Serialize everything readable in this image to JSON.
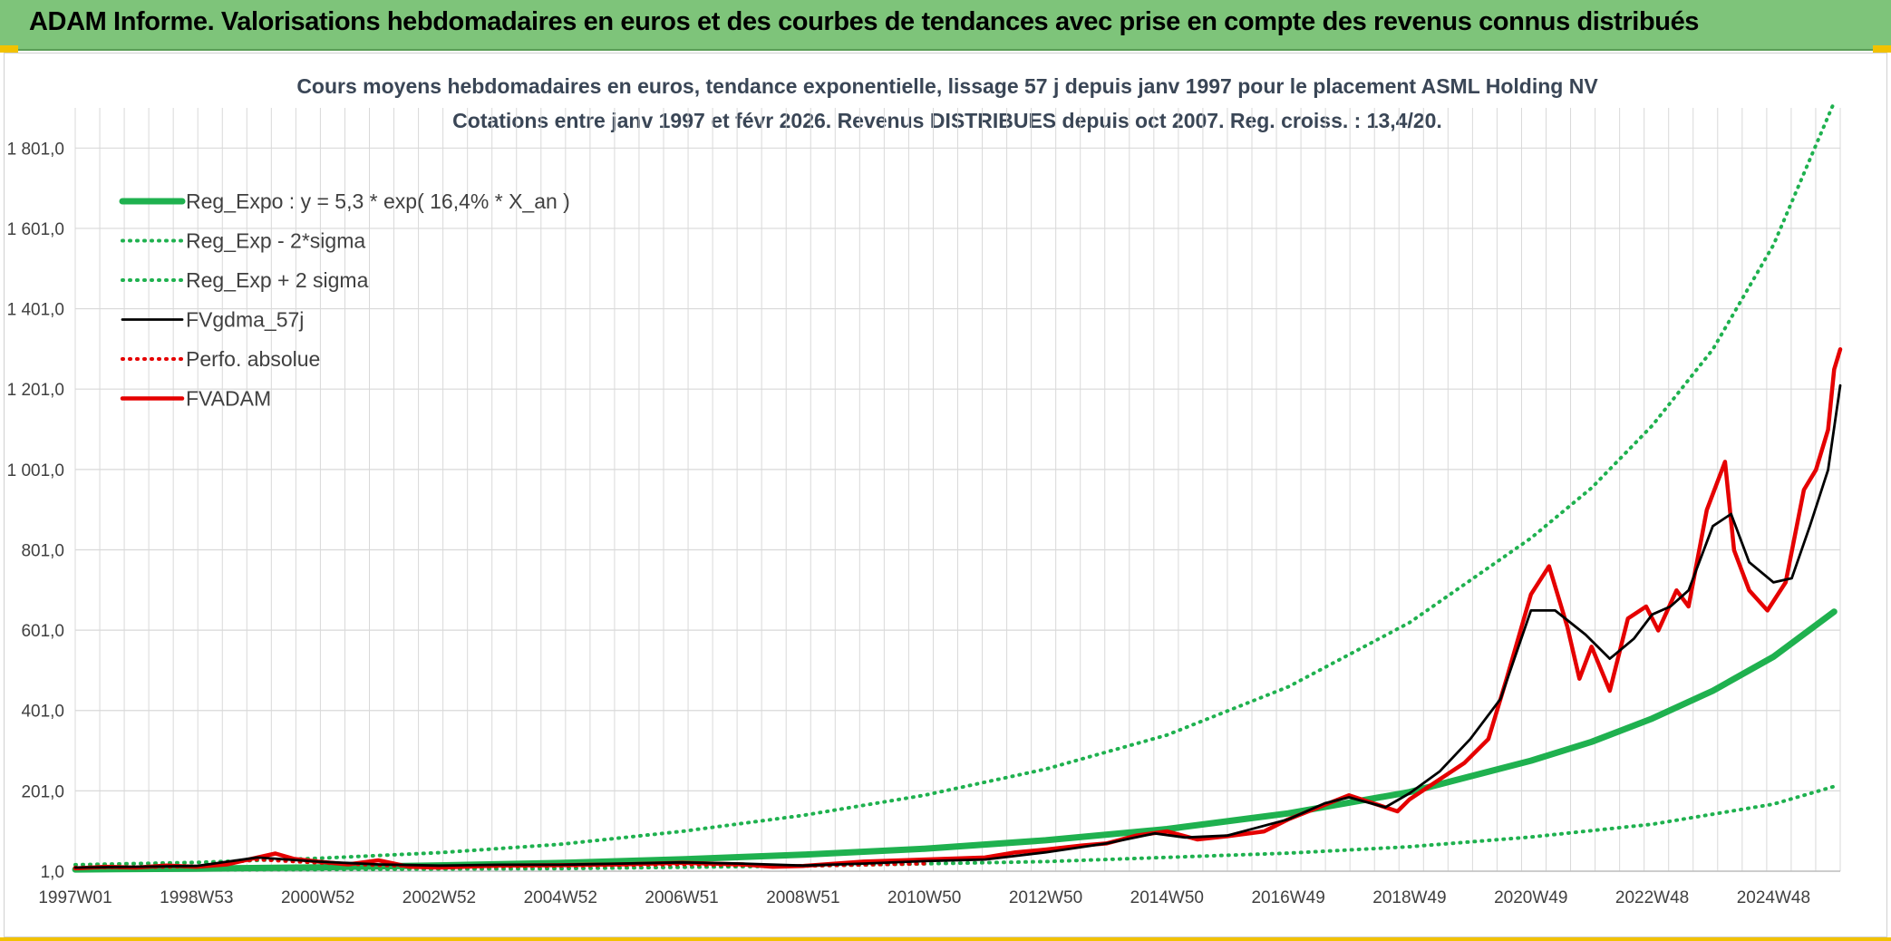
{
  "banner": {
    "title": "ADAM Informe. Valorisations hebdomadaires en euros et des courbes de tendances avec prise en compte des revenus connus distribués"
  },
  "colors": {
    "banner_bg": "#7ec47a",
    "accent_yellow": "#f2c200",
    "reg_green": "#1fb14f",
    "gdma_black": "#000000",
    "adam_red": "#e50000",
    "grid": "#d9d9d9"
  },
  "chart_data": {
    "type": "line",
    "title": "Cours moyens hebdomadaires en euros, tendance exponentielle, lissage 57 j depuis janv 1997 pour le placement ASML Holding NV",
    "subtitle": "Cotations entre janv 1997 et févr 2026. Revenus DISTRIBUES depuis oct 2007. Reg. croiss. : 13,4/20.",
    "xlabel": "",
    "ylabel": "",
    "xlim": [
      1997.0,
      2026.1
    ],
    "ylim": [
      1.0,
      1901.0
    ],
    "x_ticks": [
      {
        "label": "1997W01",
        "x": 1997.0
      },
      {
        "label": "1998W53",
        "x": 1999.0
      },
      {
        "label": "2000W52",
        "x": 2001.0
      },
      {
        "label": "2002W52",
        "x": 2003.0
      },
      {
        "label": "2004W52",
        "x": 2005.0
      },
      {
        "label": "2006W51",
        "x": 2007.0
      },
      {
        "label": "2008W51",
        "x": 2009.0
      },
      {
        "label": "2010W50",
        "x": 2011.0
      },
      {
        "label": "2012W50",
        "x": 2013.0
      },
      {
        "label": "2014W50",
        "x": 2015.0
      },
      {
        "label": "2016W49",
        "x": 2017.0
      },
      {
        "label": "2018W49",
        "x": 2019.0
      },
      {
        "label": "2020W49",
        "x": 2021.0
      },
      {
        "label": "2022W48",
        "x": 2023.0
      },
      {
        "label": "2024W48",
        "x": 2025.0
      }
    ],
    "y_ticks": [
      {
        "label": "1,0",
        "value": 1.0
      },
      {
        "label": "201,0",
        "value": 201.0
      },
      {
        "label": "401,0",
        "value": 401.0
      },
      {
        "label": "601,0",
        "value": 601.0
      },
      {
        "label": "801,0",
        "value": 801.0
      },
      {
        "label": "1 001,0",
        "value": 1001.0
      },
      {
        "label": "1 201,0",
        "value": 1201.0
      },
      {
        "label": "1 401,0",
        "value": 1401.0
      },
      {
        "label": "1 601,0",
        "value": 1601.0
      },
      {
        "label": "1 801,0",
        "value": 1801.0
      }
    ],
    "grid": true,
    "legend_position": "top-left",
    "series": [
      {
        "name": "Reg_Expo : y = 5,3 * exp( 16,4% *  X_an )",
        "style": "solid-thick",
        "color": "#1fb14f",
        "x": [
          1997.0,
          1999.0,
          2001.0,
          2003.0,
          2005.0,
          2007.0,
          2009.0,
          2011.0,
          2013.0,
          2015.0,
          2017.0,
          2019.0,
          2021.0,
          2022.0,
          2023.0,
          2024.0,
          2025.0,
          2026.0
        ],
        "y": [
          5.3,
          7.3,
          10.6,
          15.5,
          21.6,
          30.5,
          42.0,
          57.0,
          78.0,
          106.0,
          145.0,
          198.0,
          276.0,
          323.0,
          381.0,
          450.0,
          535.0,
          647.0
        ]
      },
      {
        "name": "Reg_Exp - 2*sigma",
        "style": "dotted",
        "color": "#1fb14f",
        "x": [
          1997.0,
          2001.0,
          2005.0,
          2009.0,
          2013.0,
          2017.0,
          2019.0,
          2021.0,
          2023.0,
          2025.0,
          2026.0
        ],
        "y": [
          4.0,
          5.0,
          7.5,
          14.0,
          25.0,
          46.0,
          62.0,
          86.0,
          118.0,
          168.0,
          212.0
        ]
      },
      {
        "name": "Reg_Exp + 2 sigma",
        "style": "dotted",
        "color": "#1fb14f",
        "x": [
          1997.0,
          1999.0,
          2001.0,
          2003.0,
          2005.0,
          2007.0,
          2009.0,
          2011.0,
          2013.0,
          2015.0,
          2017.0,
          2019.0,
          2021.0,
          2022.0,
          2023.0,
          2024.0,
          2025.0,
          2026.0
        ],
        "y": [
          17.0,
          23.0,
          33.0,
          47.0,
          68.0,
          100.0,
          140.0,
          190.0,
          255.0,
          340.0,
          460.0,
          620.0,
          830.0,
          955.0,
          1110.0,
          1300.0,
          1560.0,
          1915.0
        ]
      },
      {
        "name": "FVgdma_57j",
        "style": "solid",
        "color": "#000000",
        "x": [
          1997.0,
          1998.0,
          1999.0,
          2000.0,
          2000.5,
          2001.0,
          2002.0,
          2003.0,
          2004.0,
          2005.0,
          2006.0,
          2007.0,
          2008.0,
          2009.0,
          2010.0,
          2011.0,
          2012.0,
          2013.0,
          2014.0,
          2014.8,
          2015.3,
          2016.0,
          2016.5,
          2017.0,
          2017.6,
          2018.0,
          2018.6,
          2019.0,
          2019.5,
          2020.0,
          2020.5,
          2021.0,
          2021.4,
          2021.9,
          2022.3,
          2022.7,
          2023.0,
          2023.3,
          2023.6,
          2024.0,
          2024.3,
          2024.6,
          2025.0,
          2025.3,
          2025.6,
          2025.9,
          2026.1
        ],
        "y": [
          10.0,
          12.0,
          14.0,
          35.0,
          30.0,
          25.0,
          18.0,
          15.0,
          17.0,
          17.0,
          20.0,
          23.0,
          20.0,
          15.0,
          20.0,
          26.0,
          30.0,
          48.0,
          70.0,
          95.0,
          85.0,
          90.0,
          110.0,
          130.0,
          170.0,
          185.0,
          160.0,
          195.0,
          250.0,
          330.0,
          430.0,
          650.0,
          650.0,
          590.0,
          530.0,
          580.0,
          640.0,
          660.0,
          700.0,
          860.0,
          890.0,
          770.0,
          720.0,
          730.0,
          860.0,
          1000.0,
          1210.0
        ]
      },
      {
        "name": "Perfo. absolue",
        "style": "dotted",
        "color": "#e50000",
        "x": [
          1997.0,
          1998.0,
          1999.0,
          2000.0,
          2001.0,
          2002.0,
          2003.0,
          2005.0,
          2007.0,
          2009.0,
          2011.0
        ],
        "y": [
          10.0,
          11.0,
          13.0,
          30.0,
          22.0,
          16.0,
          12.0,
          14.0,
          18.0,
          14.0,
          20.0
        ]
      },
      {
        "name": "FVADAM",
        "style": "solid-thick",
        "color": "#e50000",
        "x": [
          1997.0,
          1997.5,
          1998.0,
          1998.5,
          1999.0,
          1999.5,
          2000.0,
          2000.3,
          2000.6,
          2001.0,
          2001.5,
          2002.0,
          2002.5,
          2003.0,
          2004.0,
          2005.0,
          2006.0,
          2007.0,
          2008.0,
          2008.5,
          2009.0,
          2010.0,
          2011.0,
          2012.0,
          2012.5,
          2013.0,
          2013.6,
          2014.0,
          2014.5,
          2015.0,
          2015.5,
          2016.0,
          2016.6,
          2017.0,
          2017.5,
          2018.0,
          2018.5,
          2018.8,
          2019.0,
          2019.5,
          2019.9,
          2020.3,
          2020.6,
          2021.0,
          2021.3,
          2021.6,
          2021.8,
          2022.0,
          2022.3,
          2022.6,
          2022.9,
          2023.1,
          2023.4,
          2023.6,
          2023.9,
          2024.2,
          2024.35,
          2024.6,
          2024.9,
          2025.2,
          2025.5,
          2025.7,
          2025.9,
          2026.0,
          2026.1
        ],
        "y": [
          8.0,
          12.0,
          10.0,
          15.0,
          12.0,
          18.0,
          35.0,
          45.0,
          32.0,
          25.0,
          18.0,
          28.0,
          12.0,
          10.0,
          15.0,
          16.0,
          18.0,
          22.0,
          18.0,
          12.0,
          14.0,
          25.0,
          30.0,
          35.0,
          48.0,
          55.0,
          65.0,
          70.0,
          90.0,
          100.0,
          80.0,
          88.0,
          100.0,
          130.0,
          160.0,
          190.0,
          165.0,
          150.0,
          180.0,
          230.0,
          270.0,
          330.0,
          480.0,
          690.0,
          760.0,
          610.0,
          480.0,
          560.0,
          450.0,
          630.0,
          660.0,
          600.0,
          700.0,
          660.0,
          900.0,
          1020.0,
          800.0,
          700.0,
          650.0,
          720.0,
          950.0,
          1000.0,
          1100.0,
          1250.0,
          1300.0
        ]
      }
    ]
  }
}
